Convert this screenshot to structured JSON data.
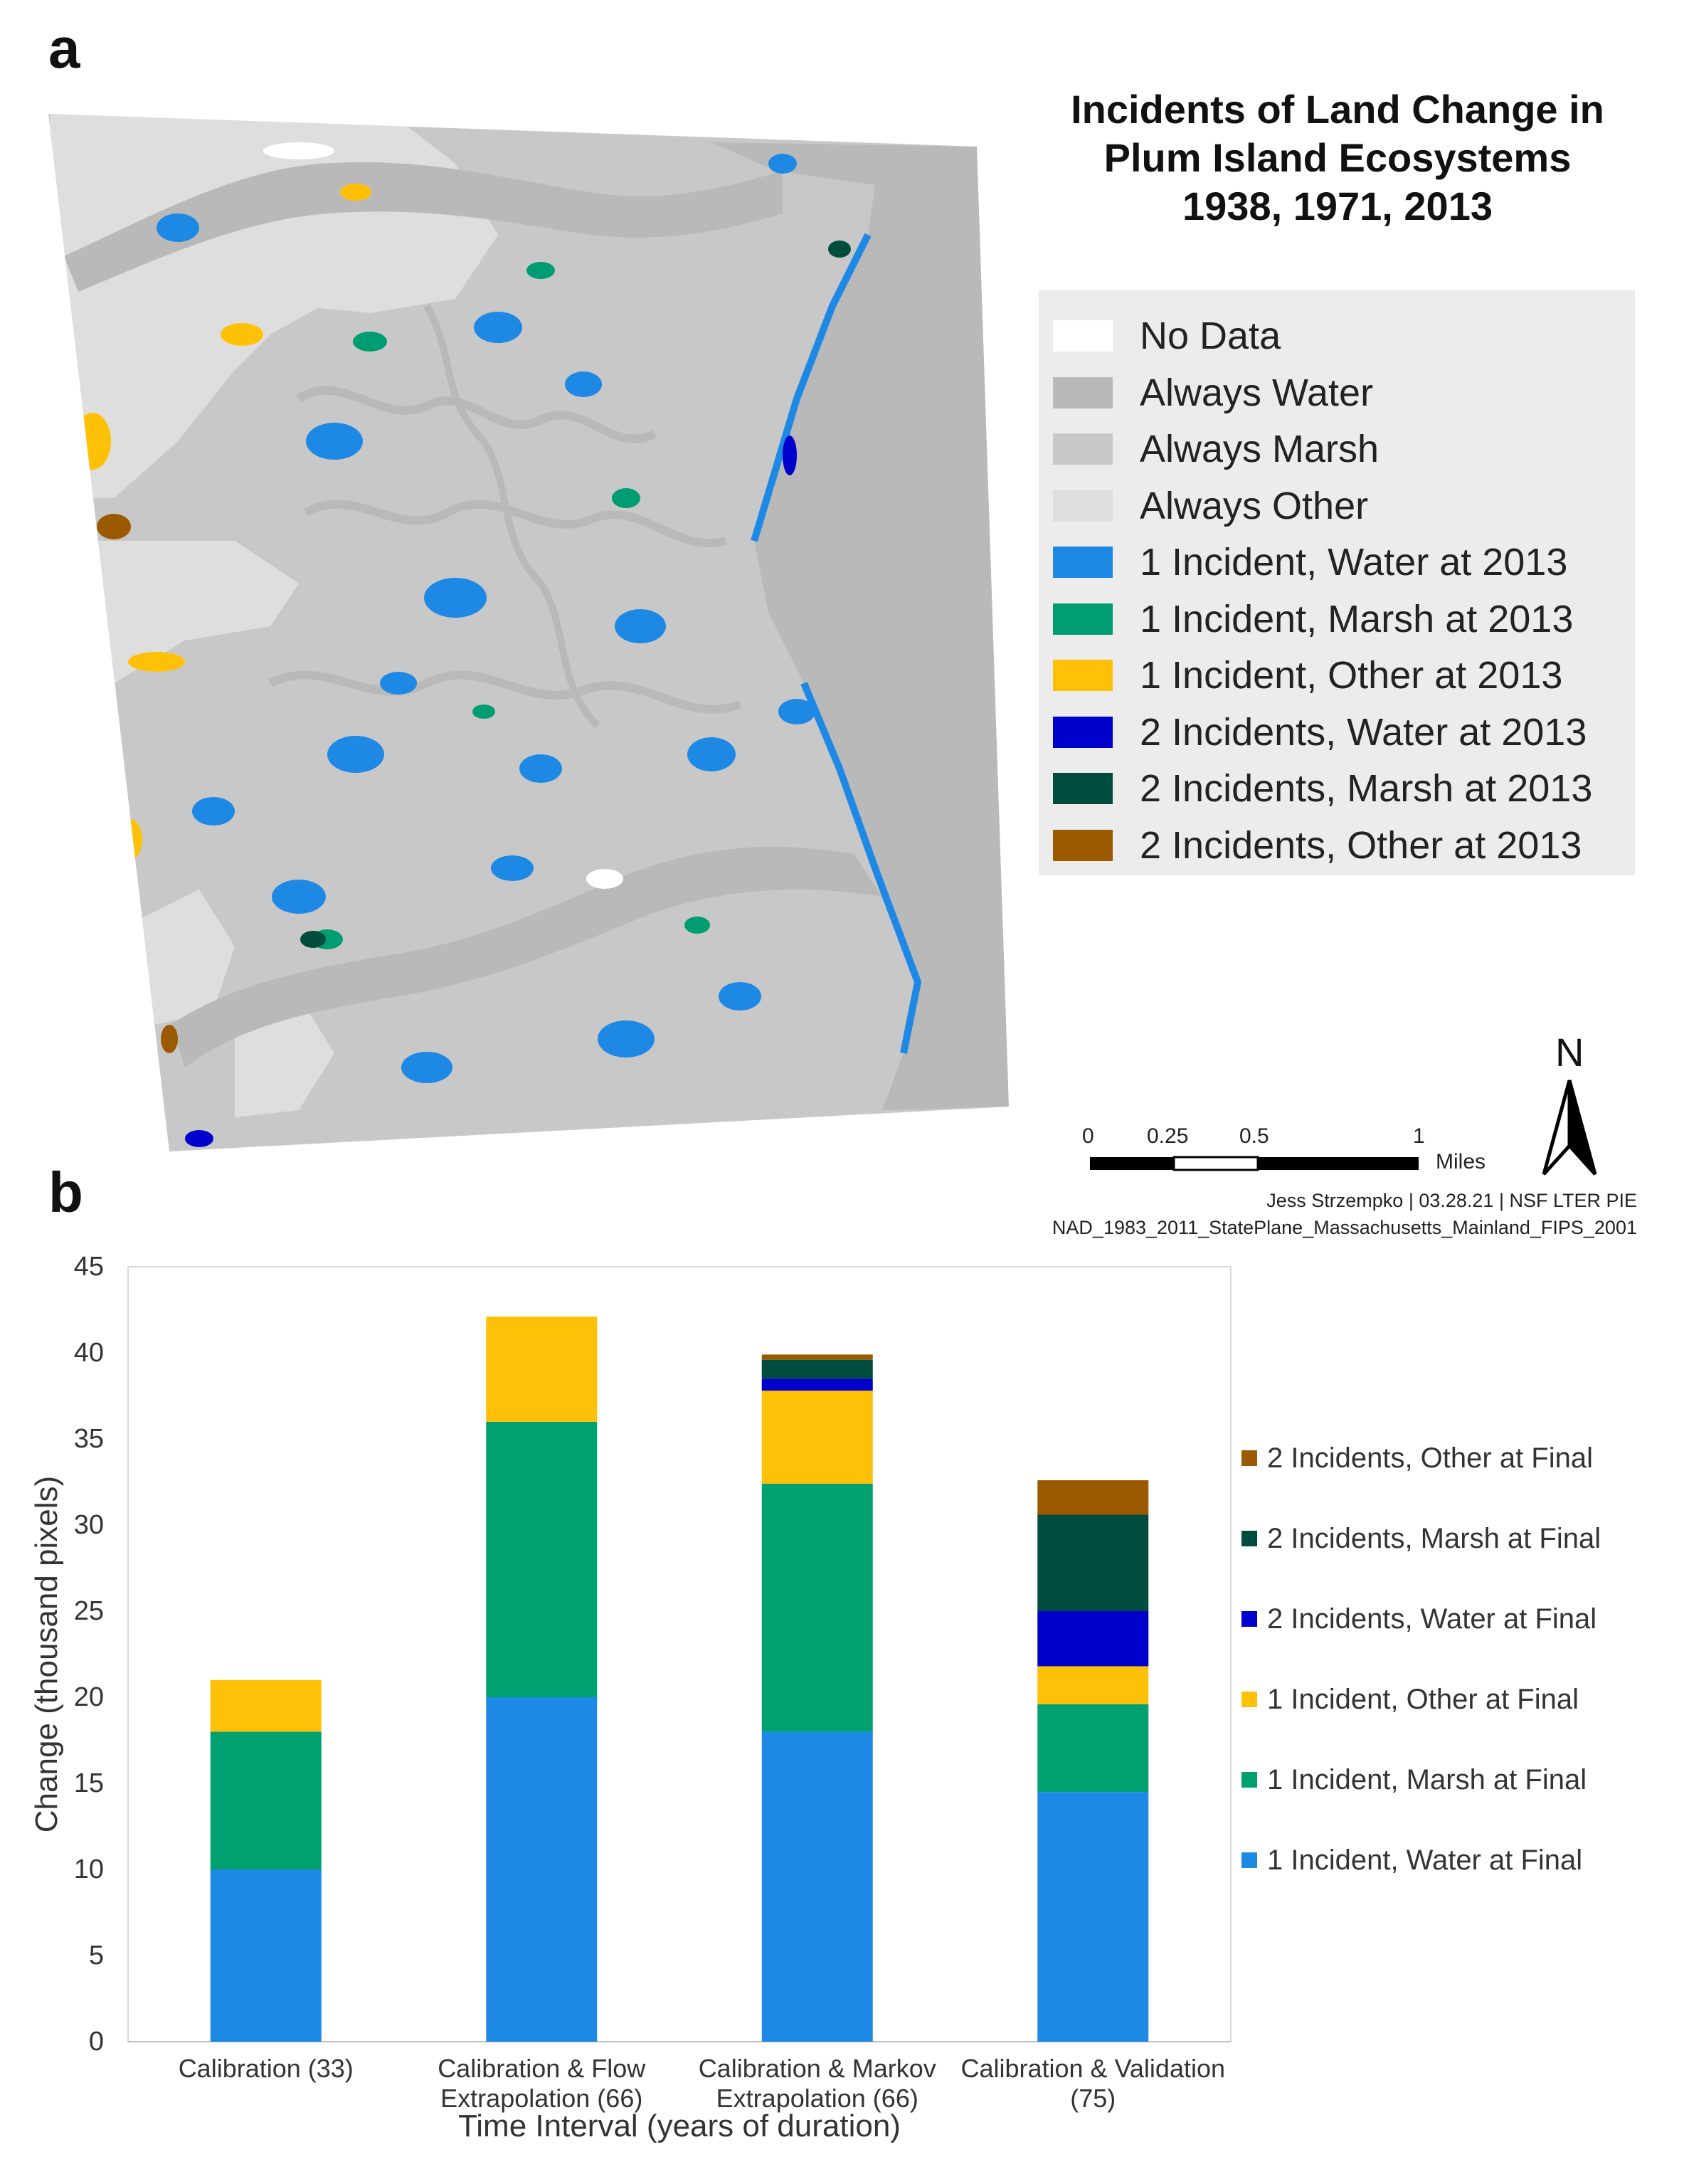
{
  "panel_a_letter": "a",
  "panel_b_letter": "b",
  "map": {
    "title_lines": [
      "Incidents of Land Change in",
      "Plum Island Ecosystems",
      "1938, 1971, 2013"
    ],
    "legend": [
      {
        "label": "No Data",
        "color": "#ffffff"
      },
      {
        "label": "Always Water",
        "color": "#b9b9b9"
      },
      {
        "label": "Always Marsh",
        "color": "#c8c8c8"
      },
      {
        "label": "Always Other",
        "color": "#dedede"
      },
      {
        "label": "1 Incident, Water at 2013",
        "color": "#1e88e5"
      },
      {
        "label": "1 Incident, Marsh at 2013",
        "color": "#009c72"
      },
      {
        "label": "1 Incident, Other at 2013",
        "color": "#ffc107"
      },
      {
        "label": "2 Incidents, Water at 2013",
        "color": "#0000cc"
      },
      {
        "label": "2 Incidents, Marsh at 2013",
        "color": "#004d40"
      },
      {
        "label": "2 Incidents, Other at 2013",
        "color": "#9c5a00"
      }
    ],
    "scale_bar": {
      "ticks": [
        "0",
        "0.25",
        "0.5",
        "1"
      ],
      "unit": "Miles"
    },
    "north_label": "N",
    "credit_line1": "Jess Strzempko | 03.28.21 | NSF LTER PIE",
    "credit_line2": "NAD_1983_2011_StatePlane_Massachusetts_Mainland_FIPS_2001"
  },
  "chart_data": {
    "type": "bar",
    "stacked": true,
    "title": "",
    "xlabel": "Time Interval (years of duration)",
    "ylabel": "Change (thousand pixels)",
    "ylim": [
      0,
      45
    ],
    "yticks": [
      0,
      5,
      10,
      15,
      20,
      25,
      30,
      35,
      40,
      45
    ],
    "categories": [
      [
        "Calibration (33)"
      ],
      [
        "Calibration & Flow",
        "Extrapolation (66)"
      ],
      [
        "Calibration & Markov",
        "Extrapolation (66)"
      ],
      [
        "Calibration & Validation",
        "(75)"
      ]
    ],
    "series": [
      {
        "name": "1 Incident, Water at Final",
        "color": "#1e88e5",
        "values": [
          10.0,
          20.0,
          18.0,
          14.5
        ]
      },
      {
        "name": "1 Incident, Marsh at Final",
        "color": "#00a070",
        "values": [
          8.0,
          16.0,
          14.4,
          5.1
        ]
      },
      {
        "name": "1 Incident, Other at Final",
        "color": "#ffc107",
        "values": [
          3.0,
          6.1,
          5.4,
          2.2
        ]
      },
      {
        "name": "2 Incidents, Water at Final",
        "color": "#0000cc",
        "values": [
          0,
          0,
          0.7,
          3.2
        ]
      },
      {
        "name": "2 Incidents, Marsh at Final",
        "color": "#004d40",
        "values": [
          0,
          0,
          1.1,
          5.6
        ]
      },
      {
        "name": "2 Incidents, Other at Final",
        "color": "#9c5a00",
        "values": [
          0,
          0,
          0.3,
          2.0
        ]
      }
    ],
    "grid": false,
    "legend_position": "right"
  }
}
